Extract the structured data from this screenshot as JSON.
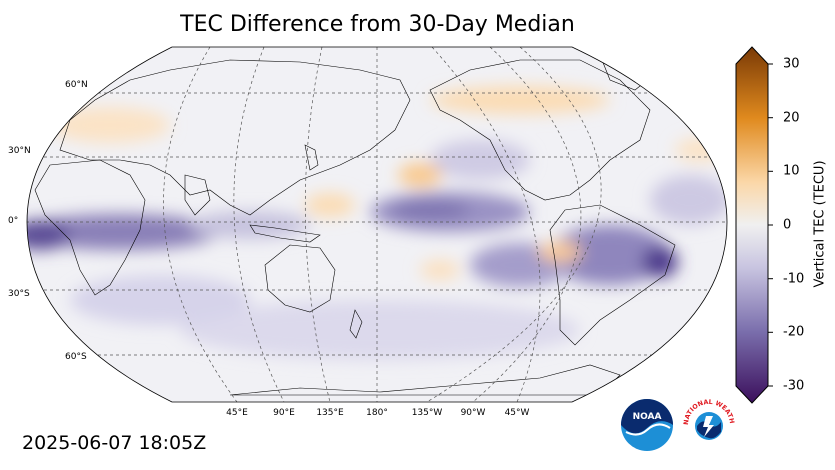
{
  "title": "TEC Difference from 30-Day Median",
  "timestamp": "2025-06-07 18:05Z",
  "lat_labels": [
    "60°N",
    "30°N",
    "0°",
    "30°S",
    "60°S"
  ],
  "lon_labels": [
    "45°E",
    "90°E",
    "135°E",
    "180°",
    "135°W",
    "90°W",
    "45°W"
  ],
  "colorbar": {
    "label": "Vertical TEC (TECU)",
    "ticks": [
      "30",
      "20",
      "10",
      "0",
      "-10",
      "-20",
      "-30"
    ],
    "min": -30,
    "max": 30,
    "colors": {
      "negative_extreme": "#3b0f5c",
      "negative_mid": "#8a7cb4",
      "neutral": "#f0f0f0",
      "positive_mid": "#f4a94b",
      "positive_extreme": "#7a3a06"
    }
  },
  "logos": {
    "noaa": "NOAA",
    "nws": "NATIONAL WEATHER SERVICE"
  },
  "colors": {
    "ocean_background": "#f2f2f4",
    "coastline": "#000000",
    "grid": "#555555"
  }
}
